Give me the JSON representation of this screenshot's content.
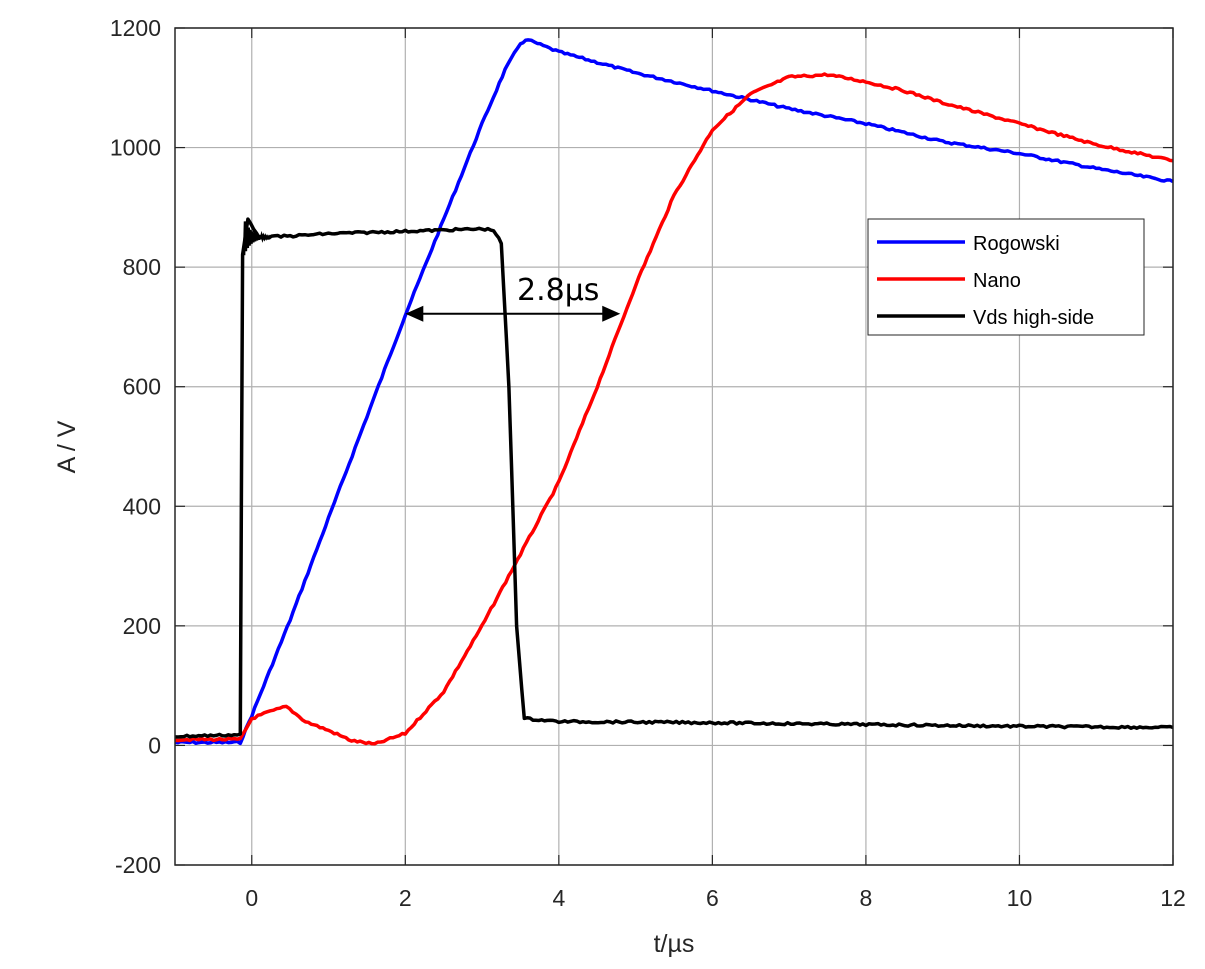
{
  "chart_data": {
    "type": "line",
    "title": "",
    "xlabel": "t/µs",
    "ylabel": "A / V",
    "xlim": [
      -1,
      12
    ],
    "ylim": [
      -200,
      1200
    ],
    "xticks": [
      0,
      2,
      4,
      6,
      8,
      10,
      12
    ],
    "yticks": [
      -200,
      0,
      200,
      400,
      600,
      800,
      1000,
      1200
    ],
    "grid": true,
    "legend_position": "upper right (inside)",
    "series": [
      {
        "name": "Rogowski",
        "color": "#0000ff",
        "x": [
          -1,
          -0.15,
          0,
          0.5,
          1,
          1.5,
          2,
          2.5,
          3,
          3.3,
          3.5,
          3.6,
          4,
          5,
          6,
          7,
          8,
          9,
          10,
          11,
          12
        ],
        "y": [
          5,
          5,
          50,
          210,
          380,
          550,
          720,
          880,
          1040,
          1130,
          1175,
          1180,
          1160,
          1125,
          1095,
          1065,
          1040,
          1010,
          990,
          965,
          943
        ]
      },
      {
        "name": "Nano",
        "color": "#ff0000",
        "x": [
          -1,
          -0.15,
          0,
          0.2,
          0.45,
          0.7,
          1,
          1.3,
          1.6,
          2,
          2.5,
          3,
          3.5,
          4,
          4.5,
          5,
          5.5,
          6,
          6.5,
          7,
          7.5,
          8,
          8.5,
          9,
          10,
          11,
          12
        ],
        "y": [
          10,
          10,
          45,
          55,
          65,
          40,
          25,
          8,
          2,
          20,
          90,
          200,
          320,
          440,
          600,
          770,
          920,
          1030,
          1090,
          1118,
          1122,
          1110,
          1095,
          1075,
          1040,
          1005,
          978
        ]
      },
      {
        "name": "Vds high-side",
        "color": "#000000",
        "x": [
          -1,
          -0.15,
          -0.12,
          -0.05,
          0.1,
          0.5,
          1,
          2,
          3,
          3.15,
          3.25,
          3.35,
          3.45,
          3.55,
          4,
          6,
          8,
          10,
          12
        ],
        "y": [
          15,
          18,
          820,
          880,
          850,
          852,
          856,
          860,
          864,
          862,
          840,
          600,
          200,
          45,
          40,
          38,
          35,
          32,
          30
        ]
      }
    ],
    "annotations": [
      {
        "text": "2.8µs",
        "type": "double-arrow",
        "x_start": 2.0,
        "x_end": 4.8,
        "y": 722
      }
    ]
  },
  "legend": {
    "items": [
      {
        "label": "Rogowski",
        "color": "#0000ff"
      },
      {
        "label": "Nano",
        "color": "#ff0000"
      },
      {
        "label": "Vds high-side",
        "color": "#000000"
      }
    ]
  },
  "annotation": {
    "label": "2.8µs"
  },
  "axes": {
    "xlabel": "t/µs",
    "ylabel": "A / V"
  }
}
